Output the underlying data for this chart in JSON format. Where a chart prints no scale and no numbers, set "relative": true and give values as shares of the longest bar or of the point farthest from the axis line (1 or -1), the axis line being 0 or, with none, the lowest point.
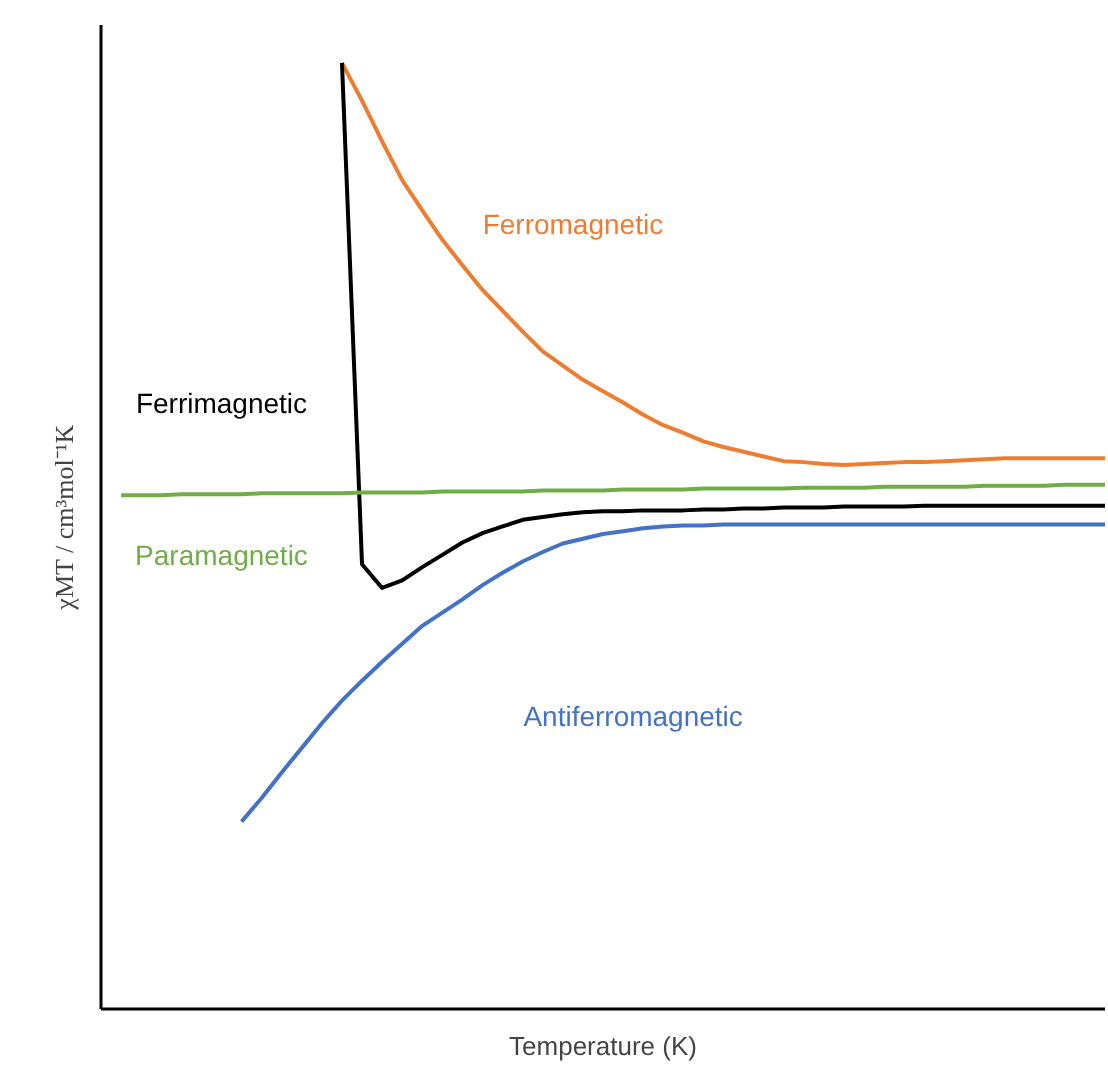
{
  "chart_data": {
    "type": "line",
    "relative": true,
    "xlabel": "Temperature (K)",
    "ylabel": "χMT / cm³mol⁻¹K",
    "grid": false,
    "legend": false,
    "marker": "none",
    "line_style": "solid",
    "categories": [
      null,
      null,
      null,
      null,
      null,
      null,
      null,
      null,
      null,
      null,
      null,
      null,
      null,
      null,
      null,
      null,
      null,
      null,
      null,
      null,
      null,
      null,
      null,
      null,
      null,
      null,
      null,
      null,
      null,
      null,
      null,
      null,
      null,
      null,
      null,
      null,
      null,
      null,
      null,
      null,
      null,
      null,
      null,
      null,
      null,
      null,
      null,
      null,
      null,
      null,
      null
    ],
    "series": [
      {
        "name": "Ferromagnetic",
        "color": "#ed7d31",
        "values": [
          null,
          null,
          null,
          null,
          null,
          null,
          null,
          null,
          null,
          null,
          null,
          null,
          1.0,
          0.96,
          0.917,
          0.876,
          0.844,
          0.813,
          0.786,
          0.76,
          0.738,
          0.716,
          0.695,
          0.68,
          0.665,
          0.653,
          0.641,
          0.628,
          0.617,
          0.609,
          0.6,
          0.594,
          0.589,
          0.584,
          0.579,
          0.578,
          0.576,
          0.575,
          0.576,
          0.577,
          0.578,
          0.578,
          0.579,
          0.58,
          0.581,
          0.582,
          0.582,
          0.582,
          0.582,
          0.582,
          0.582
        ]
      },
      {
        "name": "Ferrimagnetic",
        "color": "#000000",
        "values": [
          null,
          null,
          null,
          null,
          null,
          null,
          null,
          null,
          null,
          null,
          null,
          null,
          1.0,
          0.47,
          0.445,
          0.453,
          0.467,
          0.48,
          0.493,
          0.503,
          0.51,
          0.517,
          0.52,
          0.523,
          0.525,
          0.526,
          0.526,
          0.527,
          0.527,
          0.527,
          0.528,
          0.528,
          0.529,
          0.529,
          0.53,
          0.53,
          0.53,
          0.531,
          0.531,
          0.531,
          0.531,
          0.532,
          0.532,
          0.532,
          0.532,
          0.532,
          0.532,
          0.532,
          0.532,
          0.532,
          0.532
        ]
      },
      {
        "name": "Paramagnetic",
        "color": "#70ad47",
        "values": [
          null,
          0.543,
          0.543,
          0.543,
          0.544,
          0.544,
          0.544,
          0.544,
          0.545,
          0.545,
          0.545,
          0.545,
          0.545,
          0.546,
          0.546,
          0.546,
          0.546,
          0.547,
          0.547,
          0.547,
          0.547,
          0.547,
          0.548,
          0.548,
          0.548,
          0.548,
          0.549,
          0.549,
          0.549,
          0.549,
          0.55,
          0.55,
          0.55,
          0.55,
          0.55,
          0.551,
          0.551,
          0.551,
          0.551,
          0.552,
          0.552,
          0.552,
          0.552,
          0.552,
          0.553,
          0.553,
          0.553,
          0.553,
          0.554,
          0.554,
          0.554
        ]
      },
      {
        "name": "Antiferromagnetic",
        "color": "#4472c4",
        "values": [
          null,
          null,
          null,
          null,
          null,
          null,
          null,
          0.198,
          0.223,
          0.25,
          0.276,
          0.302,
          0.326,
          0.347,
          0.367,
          0.386,
          0.405,
          0.419,
          0.433,
          0.448,
          0.461,
          0.473,
          0.483,
          0.492,
          0.497,
          0.502,
          0.505,
          0.508,
          0.51,
          0.511,
          0.511,
          0.512,
          0.512,
          0.512,
          0.512,
          0.512,
          0.512,
          0.512,
          0.512,
          0.512,
          0.512,
          0.512,
          0.512,
          0.512,
          0.512,
          0.512,
          0.512,
          0.512,
          0.512,
          0.512,
          0.512
        ]
      }
    ]
  }
}
